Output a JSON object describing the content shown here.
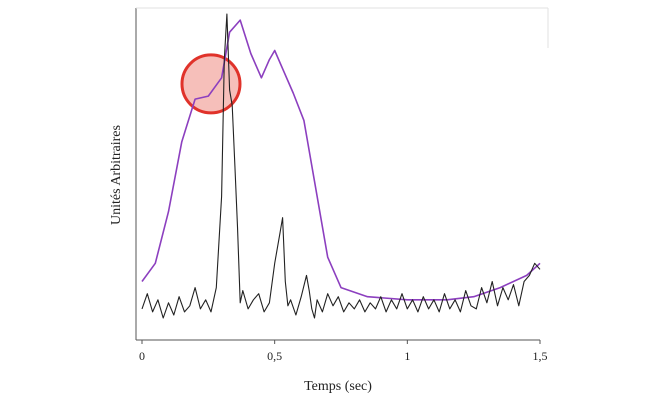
{
  "chart_data": {
    "type": "line",
    "title": "",
    "xlabel": "Temps (sec)",
    "ylabel": "Unités Arbitraires",
    "xlim": [
      0,
      1.5
    ],
    "ylim": [
      0,
      1
    ],
    "x_ticks": [
      {
        "value": 0,
        "label": "0"
      },
      {
        "value": 0.5,
        "label": "0,5"
      },
      {
        "value": 1,
        "label": "1"
      },
      {
        "value": 1.5,
        "label": "1,5"
      }
    ],
    "y_ticks": [],
    "grid": false,
    "legend": "none",
    "series": [
      {
        "color": "#8c3fbf",
        "x": [
          0,
          0.05,
          0.1,
          0.15,
          0.2,
          0.25,
          0.3,
          0.33,
          0.37,
          0.41,
          0.45,
          0.48,
          0.5,
          0.53,
          0.57,
          0.61,
          0.65,
          0.7,
          0.75,
          0.85,
          1.0,
          1.15,
          1.25,
          1.35,
          1.45,
          1.5
        ],
        "y": [
          0.12,
          0.18,
          0.35,
          0.58,
          0.72,
          0.73,
          0.79,
          0.94,
          0.98,
          0.87,
          0.79,
          0.85,
          0.88,
          0.82,
          0.74,
          0.65,
          0.45,
          0.2,
          0.1,
          0.07,
          0.06,
          0.06,
          0.07,
          0.1,
          0.14,
          0.18
        ]
      },
      {
        "color": "#222222",
        "x": [
          0,
          0.02,
          0.04,
          0.06,
          0.08,
          0.1,
          0.12,
          0.14,
          0.16,
          0.18,
          0.2,
          0.22,
          0.24,
          0.26,
          0.28,
          0.3,
          0.31,
          0.32,
          0.33,
          0.34,
          0.35,
          0.36,
          0.37,
          0.38,
          0.4,
          0.42,
          0.44,
          0.46,
          0.48,
          0.5,
          0.52,
          0.53,
          0.54,
          0.55,
          0.56,
          0.58,
          0.6,
          0.62,
          0.63,
          0.64,
          0.65,
          0.66,
          0.68,
          0.7,
          0.72,
          0.74,
          0.76,
          0.78,
          0.8,
          0.82,
          0.84,
          0.86,
          0.88,
          0.9,
          0.92,
          0.94,
          0.96,
          0.98,
          1.0,
          1.02,
          1.04,
          1.06,
          1.08,
          1.1,
          1.12,
          1.14,
          1.16,
          1.18,
          1.2,
          1.22,
          1.24,
          1.26,
          1.28,
          1.3,
          1.32,
          1.34,
          1.36,
          1.38,
          1.4,
          1.42,
          1.44,
          1.46,
          1.48,
          1.5
        ],
        "y": [
          0.03,
          0.08,
          0.02,
          0.06,
          0.0,
          0.05,
          0.01,
          0.07,
          0.02,
          0.04,
          0.1,
          0.03,
          0.06,
          0.02,
          0.1,
          0.4,
          0.85,
          1.0,
          0.75,
          0.7,
          0.5,
          0.3,
          0.05,
          0.09,
          0.03,
          0.06,
          0.08,
          0.02,
          0.05,
          0.18,
          0.28,
          0.33,
          0.12,
          0.04,
          0.06,
          0.01,
          0.07,
          0.14,
          0.09,
          0.03,
          0.0,
          0.06,
          0.02,
          0.08,
          0.04,
          0.07,
          0.02,
          0.05,
          0.03,
          0.06,
          0.02,
          0.05,
          0.03,
          0.07,
          0.02,
          0.06,
          0.03,
          0.08,
          0.03,
          0.06,
          0.02,
          0.07,
          0.03,
          0.06,
          0.02,
          0.08,
          0.03,
          0.06,
          0.02,
          0.09,
          0.04,
          0.03,
          0.1,
          0.05,
          0.12,
          0.04,
          0.1,
          0.06,
          0.11,
          0.04,
          0.12,
          0.14,
          0.18,
          0.16
        ]
      }
    ],
    "annotations": [
      {
        "type": "circle",
        "x": 0.26,
        "y": 0.77,
        "fill": "#f3a9a3",
        "stroke": "#e0322a"
      }
    ]
  }
}
